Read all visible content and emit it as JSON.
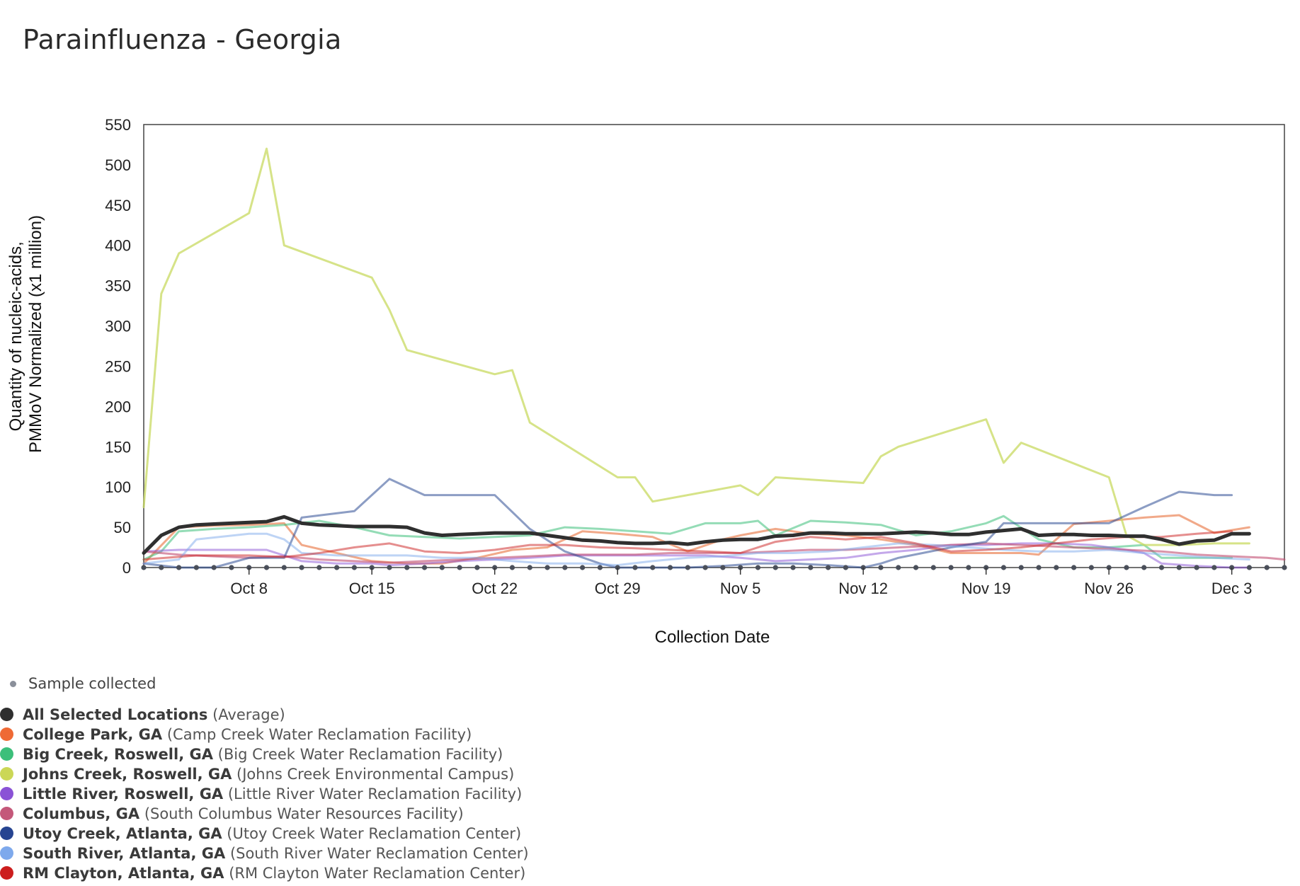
{
  "title": "Parainfluenza - Georgia",
  "chart_data": {
    "type": "line",
    "title": "Parainfluenza - Georgia",
    "xlabel": "Collection Date",
    "ylabel": [
      "Quantity of nucleic-acids,",
      "PMMoV Normalized (x1 million)"
    ],
    "ylim": [
      0,
      550
    ],
    "yticks": [
      0,
      50,
      100,
      150,
      200,
      250,
      300,
      350,
      400,
      450,
      500,
      550
    ],
    "xlim": [
      -6,
      59
    ],
    "xticks": [
      {
        "day": 0,
        "label": "Oct 8"
      },
      {
        "day": 7,
        "label": "Oct 15"
      },
      {
        "day": 14,
        "label": "Oct 22"
      },
      {
        "day": 21,
        "label": "Oct 29"
      },
      {
        "day": 28,
        "label": "Nov 5"
      },
      {
        "day": 35,
        "label": "Nov 12"
      },
      {
        "day": 42,
        "label": "Nov 19"
      },
      {
        "day": 49,
        "label": "Nov 26"
      },
      {
        "day": 56,
        "label": "Dec 3"
      }
    ],
    "x_unit": "days since Oct 8",
    "sample_days": [
      -6,
      -5,
      -4,
      -3,
      -2,
      -1,
      0,
      1,
      2,
      3,
      4,
      5,
      6,
      7,
      8,
      9,
      10,
      11,
      12,
      13,
      14,
      15,
      16,
      17,
      18,
      19,
      20,
      21,
      22,
      23,
      24,
      25,
      26,
      27,
      28,
      29,
      30,
      31,
      32,
      33,
      34,
      35,
      36,
      37,
      38,
      39,
      40,
      41,
      42,
      43,
      44,
      45,
      46,
      47,
      48,
      49,
      50,
      51,
      52,
      53,
      54,
      55,
      56,
      57,
      58,
      59
    ],
    "series": [
      {
        "name": "All Selected Locations",
        "desc": "(Average)",
        "color": "#2f2f2f",
        "width": 5,
        "opacity": 1,
        "x": [
          -6,
          -5,
          -4,
          -3,
          -2,
          -1,
          0,
          1,
          2,
          3,
          4,
          5,
          6,
          7,
          8,
          9,
          10,
          11,
          12,
          13,
          14,
          15,
          16,
          17,
          18,
          19,
          20,
          21,
          22,
          23,
          24,
          25,
          26,
          27,
          28,
          29,
          30,
          31,
          32,
          33,
          34,
          35,
          36,
          37,
          38,
          39,
          40,
          41,
          42,
          43,
          44,
          45,
          46,
          47,
          48,
          49,
          50,
          51,
          52,
          53,
          54,
          55,
          56,
          57
        ],
        "y": [
          18,
          40,
          50,
          53,
          54,
          55,
          56,
          57,
          63,
          55,
          53,
          52,
          51,
          51,
          51,
          50,
          43,
          40,
          41,
          42,
          43,
          43,
          43,
          40,
          37,
          34,
          33,
          31,
          30,
          30,
          31,
          29,
          32,
          34,
          35,
          35,
          39,
          40,
          43,
          43,
          42,
          42,
          42,
          43,
          44,
          43,
          41,
          41,
          44,
          46,
          48,
          40,
          41,
          41,
          40,
          40,
          39,
          39,
          35,
          29,
          33,
          34,
          42,
          42
        ]
      },
      {
        "name": "College Park, GA",
        "desc": "(Camp Creek Water Reclamation Facility)",
        "color": "#e8703a",
        "width": 3,
        "opacity": 0.6,
        "x": [
          -6,
          -4,
          -2,
          0,
          2,
          3,
          5,
          7,
          9,
          11,
          13,
          15,
          17,
          19,
          21,
          23,
          25,
          27,
          28,
          30,
          32,
          34,
          36,
          38,
          40,
          42,
          44,
          45,
          47,
          49,
          51,
          53,
          55,
          57
        ],
        "y": [
          5,
          50,
          52,
          53,
          55,
          28,
          18,
          8,
          5,
          5,
          12,
          22,
          25,
          45,
          42,
          38,
          20,
          35,
          40,
          48,
          42,
          40,
          35,
          28,
          18,
          18,
          18,
          16,
          54,
          58,
          62,
          65,
          43,
          50
        ]
      },
      {
        "name": "Big Creek, Roswell, GA",
        "desc": "(Big Creek Water Reclamation Facility)",
        "color": "#3cbf7a",
        "width": 3,
        "opacity": 0.55,
        "x": [
          -6,
          -5,
          -4,
          -2,
          0,
          2,
          4,
          6,
          8,
          10,
          12,
          14,
          16,
          18,
          20,
          22,
          24,
          26,
          28,
          29,
          30,
          32,
          34,
          36,
          38,
          40,
          42,
          43,
          45,
          47,
          49,
          51,
          52,
          54,
          56
        ],
        "y": [
          10,
          20,
          45,
          48,
          50,
          53,
          58,
          50,
          40,
          38,
          36,
          38,
          40,
          50,
          48,
          45,
          42,
          55,
          55,
          58,
          40,
          58,
          56,
          53,
          40,
          45,
          55,
          64,
          35,
          25,
          25,
          28,
          12,
          12,
          12
        ]
      },
      {
        "name": "Johns Creek, Roswell, GA",
        "desc": "(Johns Creek Environmental Campus)",
        "color": "#c8da60",
        "width": 3,
        "opacity": 0.75,
        "x": [
          -6,
          -5,
          -4,
          0,
          1,
          2,
          7,
          8,
          9,
          14,
          15,
          16,
          21,
          22,
          23,
          28,
          29,
          30,
          35,
          36,
          37,
          42,
          43,
          44,
          49,
          50,
          51,
          53,
          55,
          57
        ],
        "y": [
          75,
          340,
          390,
          440,
          520,
          400,
          360,
          320,
          270,
          240,
          245,
          180,
          112,
          112,
          82,
          102,
          90,
          112,
          105,
          138,
          150,
          184,
          130,
          155,
          112,
          40,
          28,
          28,
          30,
          30
        ]
      },
      {
        "name": "Little River, Roswell, GA",
        "desc": "(Little River Water Reclamation Facility)",
        "color": "#8a52d6",
        "width": 3,
        "opacity": 0.5,
        "x": [
          -6,
          -4,
          -2,
          0,
          1,
          3,
          5,
          7,
          8,
          10,
          12,
          14,
          16,
          18,
          20,
          22,
          24,
          26,
          28,
          30,
          32,
          34,
          36,
          38,
          40,
          42,
          44,
          46,
          48,
          50,
          51,
          52,
          54,
          56,
          57
        ],
        "y": [
          20,
          22,
          22,
          22,
          22,
          8,
          5,
          5,
          3,
          5,
          8,
          10,
          12,
          15,
          15,
          15,
          15,
          15,
          12,
          8,
          10,
          12,
          18,
          22,
          28,
          28,
          30,
          30,
          28,
          22,
          18,
          5,
          2,
          0,
          0
        ]
      },
      {
        "name": "Columbus, GA",
        "desc": "(South Columbus Water Resources Facility)",
        "color": "#c24d72",
        "width": 3,
        "opacity": 0.6,
        "x": [
          -6,
          -5,
          -4,
          -2,
          0,
          2,
          4,
          6,
          8,
          10,
          12,
          14,
          16,
          18,
          20,
          22,
          24,
          26,
          28,
          30,
          32,
          34,
          36,
          38,
          40,
          42,
          44,
          46,
          48,
          50,
          52,
          54,
          56,
          58,
          59
        ],
        "y": [
          20,
          18,
          16,
          14,
          12,
          14,
          10,
          8,
          6,
          8,
          10,
          12,
          14,
          16,
          16,
          16,
          18,
          18,
          18,
          20,
          22,
          22,
          24,
          26,
          28,
          30,
          28,
          26,
          24,
          22,
          20,
          16,
          14,
          12,
          10
        ]
      },
      {
        "name": "Utoy Creek, Atlanta, GA",
        "desc": "(Utoy Creek Water Reclamation Center)",
        "color": "#2e4c94",
        "width": 3,
        "opacity": 0.55,
        "x": [
          -6,
          -4,
          -2,
          0,
          2,
          3,
          6,
          8,
          9,
          10,
          11,
          13,
          14,
          16,
          18,
          20,
          21,
          23,
          25,
          27,
          29,
          31,
          33,
          35,
          36,
          37,
          40,
          42,
          43,
          45,
          47,
          49,
          51,
          53,
          54,
          55,
          56
        ],
        "y": [
          5,
          0,
          0,
          12,
          12,
          62,
          70,
          110,
          100,
          90,
          90,
          90,
          90,
          48,
          20,
          5,
          0,
          0,
          0,
          2,
          5,
          5,
          3,
          0,
          5,
          12,
          25,
          32,
          55,
          55,
          55,
          55,
          75,
          94,
          92,
          90,
          90
        ]
      },
      {
        "name": "South River, Atlanta, GA",
        "desc": "(South River Water Reclamation Center)",
        "color": "#7ea9ec",
        "width": 3,
        "opacity": 0.5,
        "x": [
          -6,
          -4,
          -3,
          0,
          1,
          2,
          3,
          5,
          7,
          9,
          11,
          13,
          15,
          17,
          19,
          21,
          23,
          25,
          27,
          29,
          31,
          33,
          35,
          37,
          39,
          41,
          43,
          45,
          47,
          49,
          51,
          53,
          55,
          57
        ],
        "y": [
          5,
          10,
          35,
          42,
          42,
          35,
          18,
          15,
          15,
          15,
          12,
          12,
          8,
          5,
          5,
          3,
          8,
          12,
          14,
          18,
          18,
          20,
          25,
          30,
          28,
          25,
          22,
          20,
          20,
          22,
          18,
          15,
          12,
          10
        ]
      },
      {
        "name": "RM Clayton, Atlanta, GA",
        "desc": "(RM Clayton Water Reclamation Center)",
        "color": "#cc1d1d",
        "width": 3,
        "opacity": 0.5,
        "x": [
          -6,
          -3,
          0,
          2,
          4,
          6,
          8,
          10,
          12,
          14,
          16,
          18,
          20,
          22,
          24,
          26,
          28,
          30,
          32,
          34,
          36,
          38,
          40,
          42,
          44,
          46,
          48,
          50,
          52,
          54,
          56
        ],
        "y": [
          10,
          15,
          15,
          13,
          18,
          25,
          30,
          20,
          18,
          22,
          28,
          28,
          25,
          24,
          22,
          20,
          18,
          32,
          38,
          35,
          38,
          30,
          20,
          22,
          25,
          30,
          35,
          38,
          38,
          42,
          45
        ]
      }
    ]
  },
  "legend": {
    "sample_label": "Sample collected",
    "sample_color": "#8a8f9a",
    "entries": [
      {
        "name": "All Selected Locations",
        "desc": "(Average)",
        "color": "#2f2f2f"
      },
      {
        "name": "College Park, GA",
        "desc": "(Camp Creek Water Reclamation Facility)",
        "color": "#ef6a35"
      },
      {
        "name": "Big Creek, Roswell, GA",
        "desc": "(Big Creek Water Reclamation Facility)",
        "color": "#3cbf7a"
      },
      {
        "name": "Johns Creek, Roswell, GA",
        "desc": "(Johns Creek Environmental Campus)",
        "color": "#cbd756"
      },
      {
        "name": "Little River, Roswell, GA",
        "desc": "(Little River Water Reclamation Facility)",
        "color": "#8a52d6"
      },
      {
        "name": "Columbus, GA",
        "desc": "(South Columbus Water Resources Facility)",
        "color": "#c4587a"
      },
      {
        "name": "Utoy Creek, Atlanta, GA",
        "desc": "(Utoy Creek Water Reclamation Center)",
        "color": "#264491"
      },
      {
        "name": "South River, Atlanta, GA",
        "desc": "(South River Water Reclamation Center)",
        "color": "#7ea9ec"
      },
      {
        "name": "RM Clayton, Atlanta, GA",
        "desc": "(RM Clayton Water Reclamation Center)",
        "color": "#cc1d1d"
      }
    ]
  }
}
